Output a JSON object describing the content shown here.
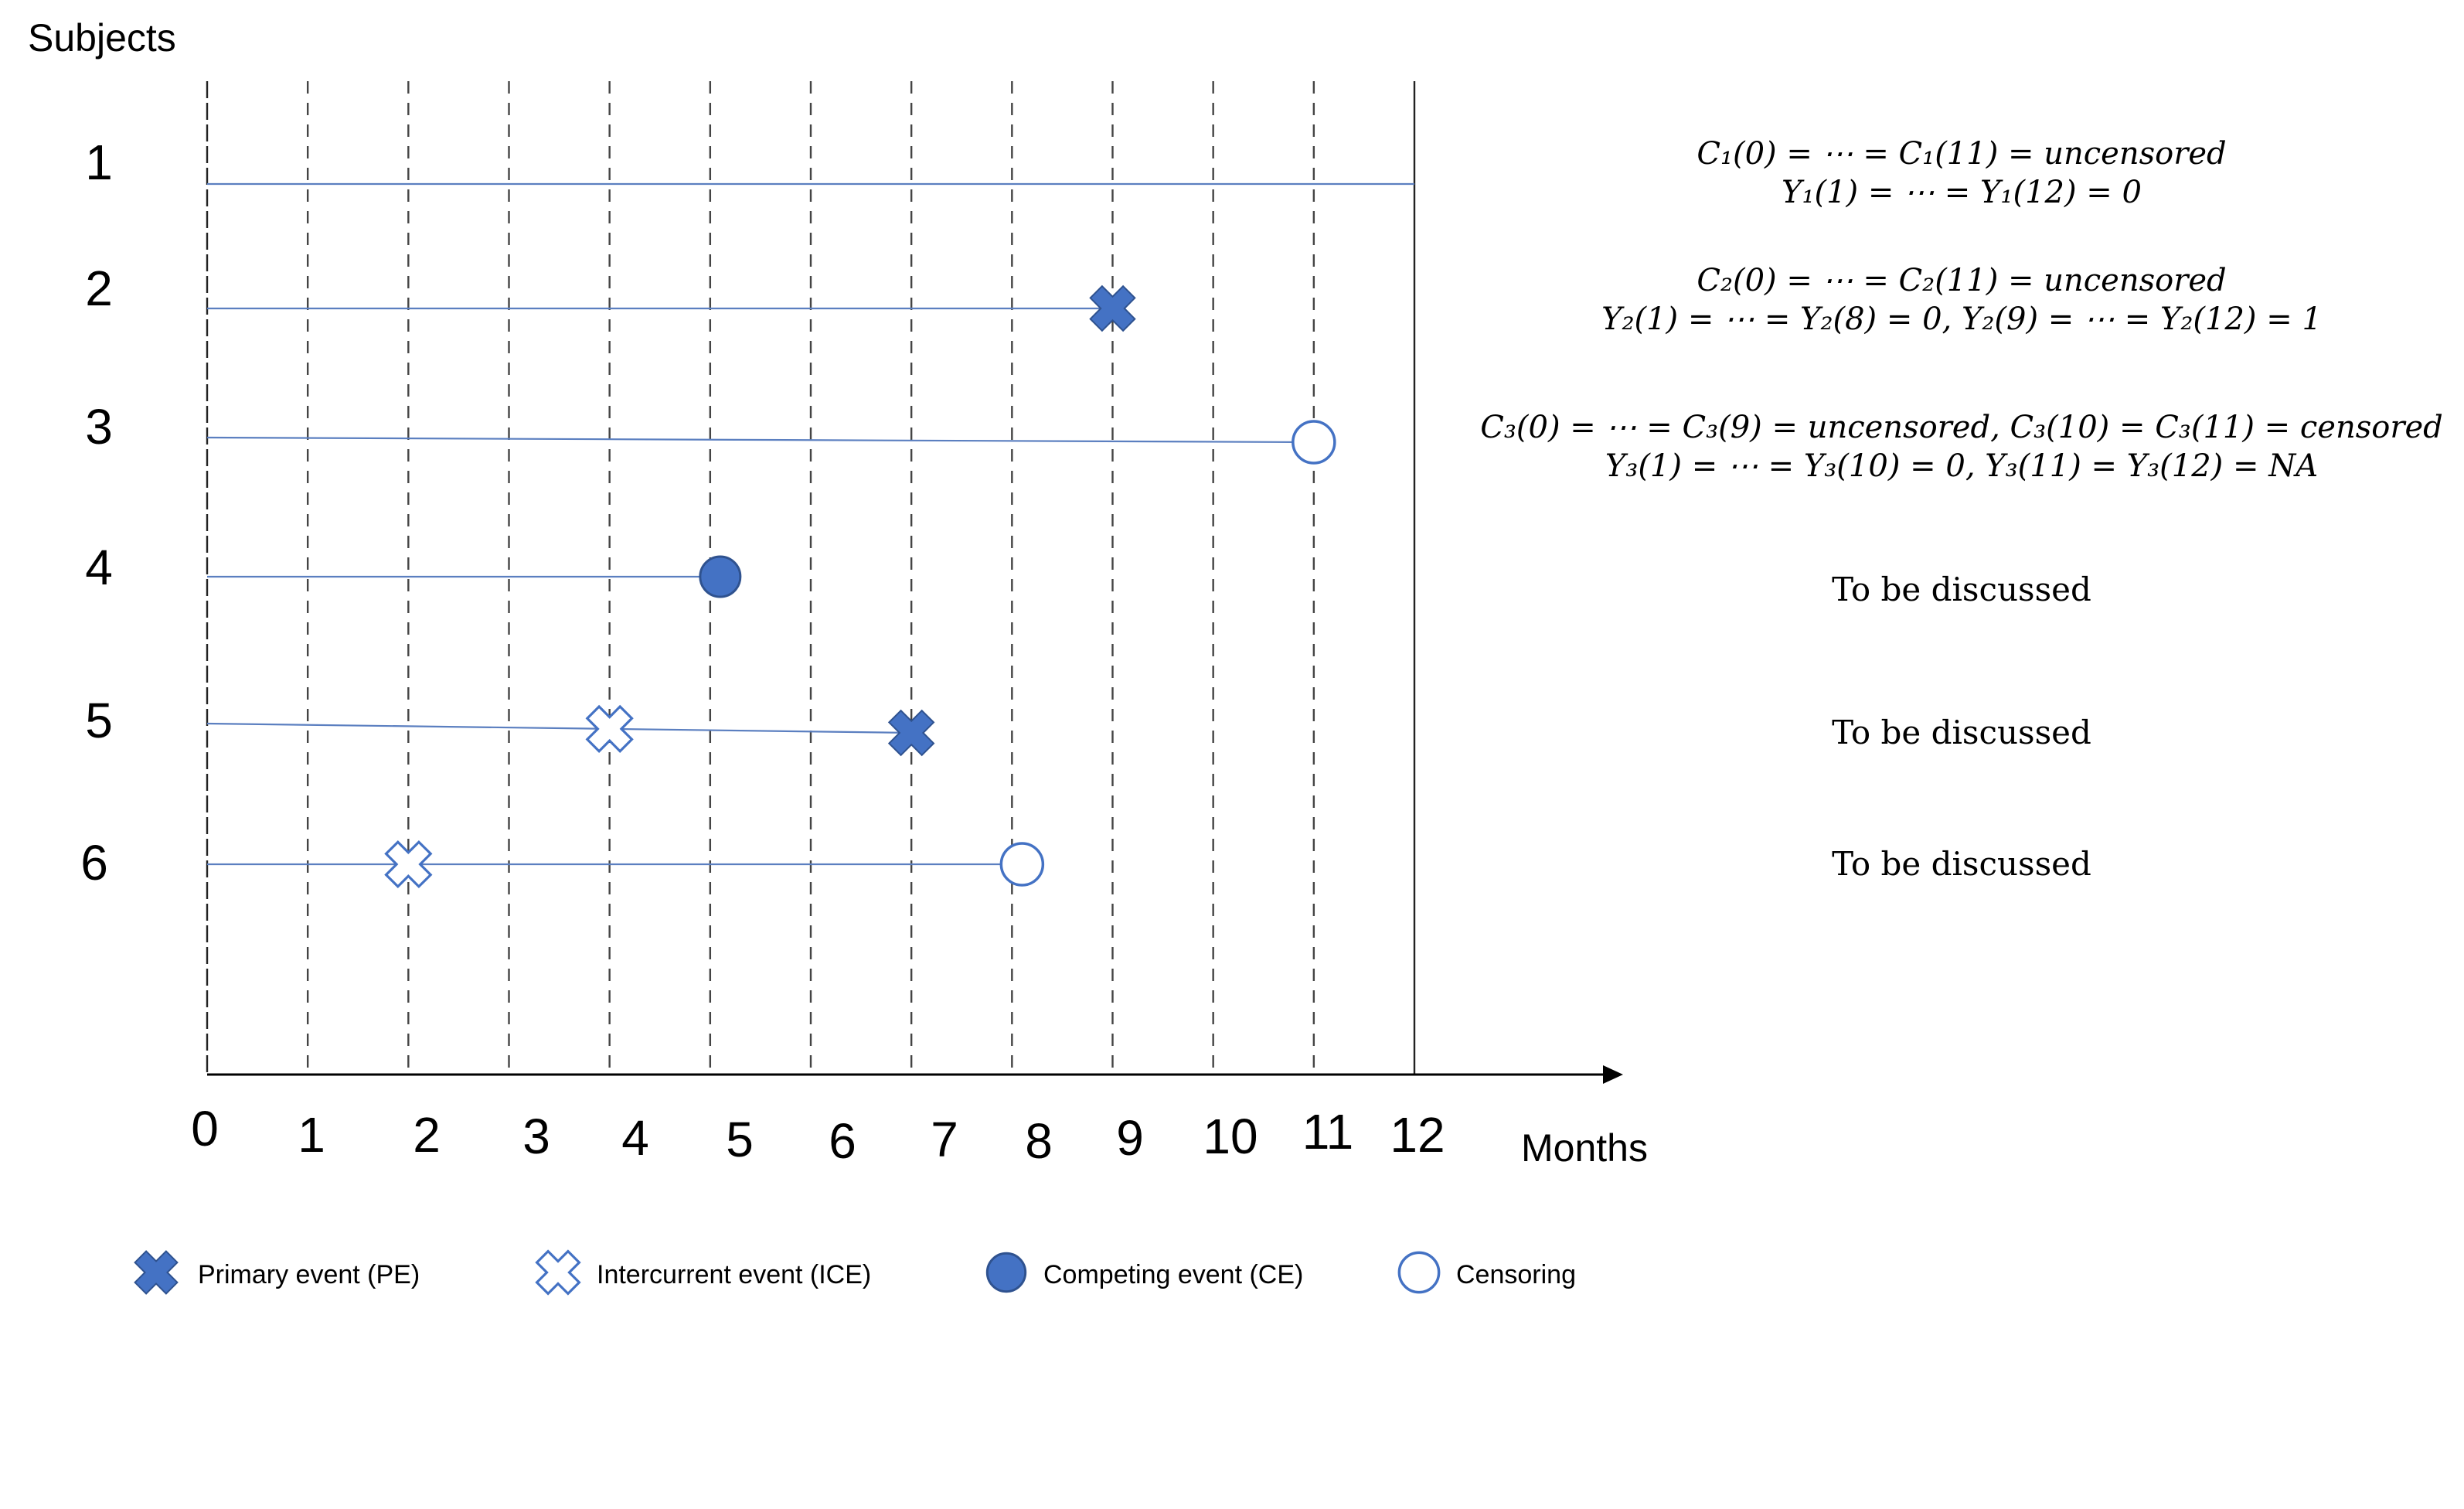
{
  "colors": {
    "marker_fill": "#4472c4",
    "marker_stroke": "#2f528f",
    "track": "#5b7fc0",
    "axis": "#000000"
  },
  "labels": {
    "subjects": "Subjects",
    "months": "Months"
  },
  "months": [
    0,
    1,
    2,
    3,
    4,
    5,
    6,
    7,
    8,
    9,
    10,
    11,
    12
  ],
  "subjects": [
    {
      "label": "1",
      "end": 12,
      "events": [],
      "notes": [
        "C₁(0) = ⋯ = C₁(11) = uncensored",
        "Y₁(1) = ⋯ = Y₁(12) = 0"
      ]
    },
    {
      "label": "2",
      "end": 9,
      "events": [
        {
          "type": "primary",
          "month": 9
        }
      ],
      "notes": [
        "C₂(0) = ⋯ = C₂(11) = uncensored",
        "Y₂(1) = ⋯ = Y₂(8) = 0, Y₂(9) = ⋯ = Y₂(12) = 1"
      ]
    },
    {
      "label": "3",
      "end": 11,
      "events": [
        {
          "type": "censoring",
          "month": 11
        }
      ],
      "notes": [
        "C₃(0) = ⋯ = C₃(9) = uncensored, C₃(10) = C₃(11) = censored",
        "Y₃(1) = ⋯ = Y₃(10) = 0, Y₃(11) = Y₃(12) = NA"
      ]
    },
    {
      "label": "4",
      "end": 5.1,
      "events": [
        {
          "type": "competing",
          "month": 5.1
        }
      ],
      "notes": [
        "To be discussed"
      ]
    },
    {
      "label": "5",
      "end": 7,
      "events": [
        {
          "type": "intercurrent",
          "month": 4
        },
        {
          "type": "primary",
          "month": 7
        }
      ],
      "notes": [
        "To be discussed"
      ]
    },
    {
      "label": "6",
      "end": 8.1,
      "events": [
        {
          "type": "intercurrent",
          "month": 2
        },
        {
          "type": "censoring",
          "month": 8.1
        }
      ],
      "notes": [
        "To be discussed"
      ]
    }
  ],
  "legend": [
    {
      "type": "primary",
      "label": "Primary event (PE)"
    },
    {
      "type": "intercurrent",
      "label": "Intercurrent event (ICE)"
    },
    {
      "type": "competing",
      "label": "Competing event (CE)"
    },
    {
      "type": "censoring",
      "label": "Censoring"
    }
  ]
}
